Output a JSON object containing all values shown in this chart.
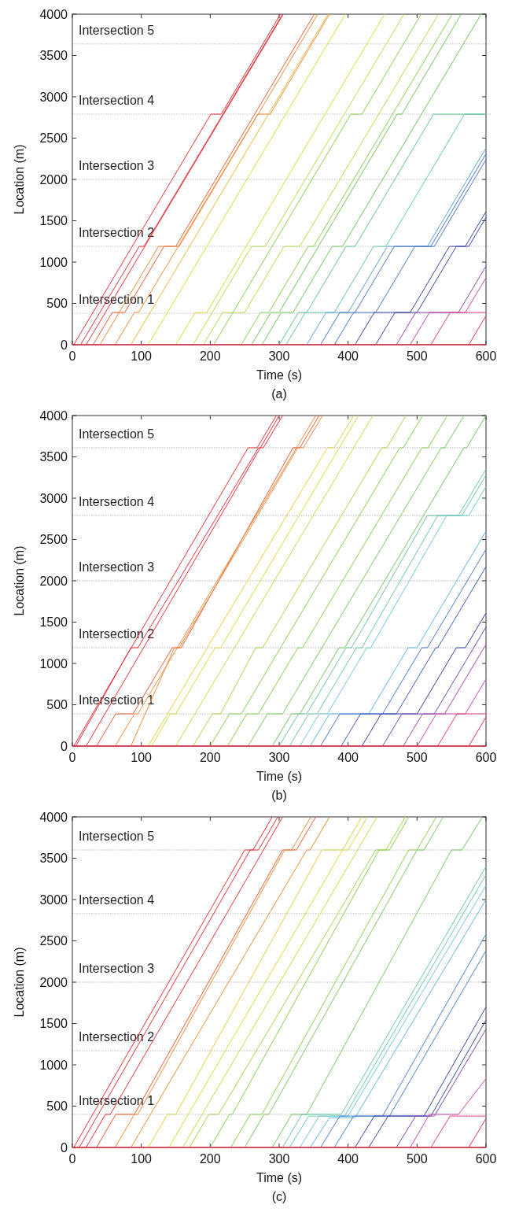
{
  "chart_data": [
    {
      "type": "line",
      "xlabel": "Time (s)",
      "ylabel": "Location (m)",
      "annotations": [
        "(a)"
      ],
      "xlim": [
        0,
        600
      ],
      "ylim": [
        0,
        4000
      ],
      "xticks": [
        0,
        100,
        200,
        300,
        400,
        500,
        600
      ],
      "yticks": [
        0,
        500,
        1000,
        1500,
        2000,
        2500,
        3000,
        3500,
        4000
      ],
      "ref_lines": [
        {
          "axis": "y",
          "value": 380,
          "label": "Intersection 1",
          "color": "#b0b0b0",
          "line_style": "dotted"
        },
        {
          "axis": "y",
          "value": 1190,
          "label": "Intersection 2",
          "color": "#b0b0b0",
          "line_style": "dotted"
        },
        {
          "axis": "y",
          "value": 2000,
          "label": "Intersection 3",
          "color": "#b0b0b0",
          "line_style": "dotted"
        },
        {
          "axis": "y",
          "value": 2790,
          "label": "Intersection 4",
          "color": "#b0b0b0",
          "line_style": "dotted"
        },
        {
          "axis": "y",
          "value": 3640,
          "label": "Intersection 5",
          "color": "#b0b0b0",
          "line_style": "dotted"
        }
      ],
      "series": [
        {
          "color": "#e8304c",
          "x": [
            0,
            600
          ],
          "values": [
            0,
            0
          ]
        },
        {
          "color": "#e83038",
          "x": [
            2,
            201,
            216,
            302
          ],
          "values": [
            0,
            2790,
            2790,
            4000
          ]
        },
        {
          "color": "#e83038",
          "x": [
            12,
            97,
            104,
            305
          ],
          "values": [
            0,
            1190,
            1190,
            4000
          ]
        },
        {
          "color": "#e83038",
          "x": [
            20,
            306
          ],
          "values": [
            0,
            4000
          ]
        },
        {
          "color": "#ec5a30",
          "x": [
            30,
            58,
            76,
            133,
            150,
            351
          ],
          "values": [
            0,
            390,
            390,
            1190,
            1190,
            4000
          ]
        },
        {
          "color": "#ee8a38",
          "x": [
            40,
            125,
            155,
            356
          ],
          "values": [
            0,
            1190,
            1190,
            4000
          ]
        },
        {
          "color": "#ee8a38",
          "x": [
            62,
            90,
            96,
            269,
            287,
            373
          ],
          "values": [
            0,
            390,
            390,
            2790,
            2790,
            4000
          ]
        },
        {
          "color": "#e8b838",
          "x": [
            85,
            371
          ],
          "values": [
            0,
            4000
          ]
        },
        {
          "color": "#dcd83c",
          "x": [
            110,
            396
          ],
          "values": [
            0,
            4000
          ]
        },
        {
          "color": "#dcd83c",
          "x": [
            150,
            178,
            195,
            453
          ],
          "values": [
            0,
            390,
            390,
            4000
          ]
        },
        {
          "color": "#b8dc48",
          "x": [
            175,
            260,
            280,
            481
          ],
          "values": [
            0,
            1190,
            1190,
            4000
          ]
        },
        {
          "color": "#b8dc48",
          "x": [
            190,
            218,
            250,
            307,
            330,
            531
          ],
          "values": [
            0,
            390,
            390,
            1190,
            1190,
            4000
          ]
        },
        {
          "color": "#88d050",
          "x": [
            205,
            404,
            420,
            506
          ],
          "values": [
            0,
            2790,
            2790,
            4000
          ]
        },
        {
          "color": "#88d050",
          "x": [
            245,
            273,
            285,
            342,
            350,
            551
          ],
          "values": [
            0,
            390,
            390,
            1190,
            1190,
            4000
          ]
        },
        {
          "color": "#70c858",
          "x": [
            260,
            288,
            300,
            471,
            478,
            564
          ],
          "values": [
            0,
            390,
            390,
            2790,
            2790,
            4000
          ]
        },
        {
          "color": "#70c858",
          "x": [
            275,
            303,
            320,
            377,
            392,
            593
          ],
          "values": [
            0,
            390,
            390,
            1190,
            1190,
            4000
          ]
        },
        {
          "color": "#60c890",
          "x": [
            300,
            328,
            340,
            397,
            410,
            524,
            600
          ],
          "values": [
            0,
            390,
            390,
            1190,
            1190,
            2790,
            2790
          ]
        },
        {
          "color": "#60c8b0",
          "x": [
            310,
            338,
            380,
            437,
            455,
            569,
            600
          ],
          "values": [
            0,
            390,
            390,
            1190,
            1190,
            2790,
            2790
          ]
        },
        {
          "color": "#5aa0d8",
          "x": [
            340,
            368,
            400,
            457,
            515,
            600
          ],
          "values": [
            0,
            390,
            390,
            1190,
            1190,
            2380
          ]
        },
        {
          "color": "#4878c8",
          "x": [
            360,
            388,
            410,
            467,
            520,
            600
          ],
          "values": [
            0,
            390,
            390,
            1190,
            1190,
            2310
          ]
        },
        {
          "color": "#4878c8",
          "x": [
            380,
            408,
            440,
            497,
            525,
            600
          ],
          "values": [
            0,
            390,
            390,
            1190,
            1190,
            2240
          ]
        },
        {
          "color": "#3848a8",
          "x": [
            410,
            438,
            490,
            547,
            570,
            600
          ],
          "values": [
            0,
            390,
            390,
            1190,
            1190,
            1610
          ]
        },
        {
          "color": "#3848a8",
          "x": [
            440,
            468,
            500,
            557,
            575,
            600
          ],
          "values": [
            0,
            390,
            390,
            1190,
            1190,
            1540
          ]
        },
        {
          "color": "#9048b0",
          "x": [
            470,
            498,
            560,
            600
          ],
          "values": [
            0,
            390,
            390,
            950
          ]
        },
        {
          "color": "#c848a8",
          "x": [
            490,
            518,
            570,
            600
          ],
          "values": [
            0,
            390,
            390,
            810
          ]
        },
        {
          "color": "#e04080",
          "x": [
            520,
            548,
            600
          ],
          "values": [
            0,
            390,
            390
          ]
        },
        {
          "color": "#e83048",
          "x": [
            575,
            600
          ],
          "values": [
            0,
            350
          ]
        }
      ]
    },
    {
      "type": "line",
      "xlabel": "Time (s)",
      "ylabel": "Location (m)",
      "annotations": [
        "(b)"
      ],
      "xlim": [
        0,
        600
      ],
      "ylim": [
        0,
        4000
      ],
      "xticks": [
        0,
        100,
        200,
        300,
        400,
        500,
        600
      ],
      "yticks": [
        0,
        500,
        1000,
        1500,
        2000,
        2500,
        3000,
        3500,
        4000
      ],
      "ref_lines": [
        {
          "axis": "y",
          "value": 390,
          "label": "Intersection 1",
          "color": "#a0a0a0",
          "line_style": "dotted"
        },
        {
          "axis": "y",
          "value": 1190,
          "label": "Intersection 2",
          "color": "#a0a0a0",
          "line_style": "dotted"
        },
        {
          "axis": "y",
          "value": 2000,
          "label": "Intersection 3",
          "color": "#a0a0a0",
          "line_style": "dotted"
        },
        {
          "axis": "y",
          "value": 2790,
          "label": "Intersection 4",
          "color": "#a0a0a0",
          "line_style": "dotted"
        },
        {
          "axis": "y",
          "value": 3610,
          "label": "Intersection 5",
          "color": "#a0a0a0",
          "line_style": "dotted"
        }
      ],
      "series": [
        {
          "color": "#e8304c",
          "x": [
            0,
            600
          ],
          "values": [
            0,
            0
          ]
        },
        {
          "color": "#e83038",
          "x": [
            2,
            255,
            268,
            296
          ],
          "values": [
            0,
            3610,
            3610,
            4000
          ]
        },
        {
          "color": "#e83038",
          "x": [
            5,
            85,
            95,
            270,
            277,
            305
          ],
          "values": [
            0,
            1190,
            1190,
            3610,
            3610,
            4000
          ]
        },
        {
          "color": "#e83038",
          "x": [
            20,
            300
          ],
          "values": [
            0,
            4000
          ]
        },
        {
          "color": "#ec5a30",
          "x": [
            35,
            63,
            88,
            145,
            158,
            320,
            330,
            358
          ],
          "values": [
            0,
            390,
            390,
            1190,
            1190,
            3610,
            3610,
            4000
          ]
        },
        {
          "color": "#ee8a38",
          "x": [
            62,
            90,
            95,
            353
          ],
          "values": [
            0,
            390,
            390,
            4000
          ]
        },
        {
          "color": "#ee8a38",
          "x": [
            85,
            148,
            155,
            327,
            335,
            363
          ],
          "values": [
            0,
            1190,
            1190,
            3610,
            3610,
            4000
          ]
        },
        {
          "color": "#e0d040",
          "x": [
            110,
            370,
            380,
            408
          ],
          "values": [
            0,
            3610,
            3610,
            4000
          ]
        },
        {
          "color": "#dcd83c",
          "x": [
            115,
            142,
            150,
            207,
            215,
            415
          ],
          "values": [
            0,
            390,
            390,
            1190,
            1190,
            4000
          ]
        },
        {
          "color": "#c0dc48",
          "x": [
            150,
            436
          ],
          "values": [
            0,
            4000
          ]
        },
        {
          "color": "#a8d848",
          "x": [
            175,
            203,
            215,
            266,
            276,
            449,
            456,
            484
          ],
          "values": [
            0,
            390,
            390,
            1190,
            1190,
            3610,
            3610,
            4000
          ]
        },
        {
          "color": "#88d050",
          "x": [
            200,
            228,
            245,
            302,
            475,
            480,
            508
          ],
          "values": [
            0,
            390,
            390,
            1190,
            3610,
            3610,
            4000
          ]
        },
        {
          "color": "#88d050",
          "x": [
            225,
            253,
            270,
            327,
            334,
            507,
            516,
            544
          ],
          "values": [
            0,
            390,
            390,
            1190,
            1190,
            3610,
            3610,
            4000
          ]
        },
        {
          "color": "#78cc58",
          "x": [
            255,
            283,
            305,
            362,
            535,
            540,
            568
          ],
          "values": [
            0,
            390,
            390,
            1190,
            3610,
            3610,
            4000
          ]
        },
        {
          "color": "#70c860",
          "x": [
            290,
            318,
            330,
            387,
            395,
            568,
            572,
            600
          ],
          "values": [
            0,
            390,
            390,
            1190,
            1190,
            3610,
            3610,
            4000
          ]
        },
        {
          "color": "#68c8a0",
          "x": [
            300,
            328,
            340,
            397,
            405,
            515,
            560,
            600
          ],
          "values": [
            0,
            390,
            390,
            1190,
            1190,
            2790,
            2790,
            3350
          ]
        },
        {
          "color": "#68c8a0",
          "x": [
            315,
            343,
            355,
            412,
            420,
            530,
            565,
            600
          ],
          "values": [
            0,
            390,
            390,
            1190,
            1190,
            2790,
            2790,
            3280
          ]
        },
        {
          "color": "#70c8d8",
          "x": [
            330,
            358,
            370,
            427,
            433,
            543,
            575,
            600
          ],
          "values": [
            0,
            390,
            390,
            1190,
            1190,
            2790,
            2790,
            3140
          ]
        },
        {
          "color": "#60b8e0",
          "x": [
            345,
            373,
            430,
            487,
            500,
            600
          ],
          "values": [
            0,
            390,
            390,
            1190,
            1190,
            2600
          ]
        },
        {
          "color": "#4a78d0",
          "x": [
            360,
            388,
            450,
            507,
            515,
            600
          ],
          "values": [
            0,
            390,
            390,
            1190,
            1190,
            2380
          ]
        },
        {
          "color": "#3e5cc0",
          "x": [
            390,
            418,
            470,
            527,
            530,
            600
          ],
          "values": [
            0,
            390,
            390,
            1190,
            1190,
            2170
          ]
        },
        {
          "color": "#3840a8",
          "x": [
            420,
            448,
            500,
            557,
            570,
            600
          ],
          "values": [
            0,
            390,
            390,
            1190,
            1190,
            1610
          ]
        },
        {
          "color": "#7848b8",
          "x": [
            450,
            478,
            525,
            600
          ],
          "values": [
            0,
            390,
            390,
            1440
          ]
        },
        {
          "color": "#a048b0",
          "x": [
            480,
            508,
            540,
            600
          ],
          "values": [
            0,
            390,
            390,
            1230
          ]
        },
        {
          "color": "#d048a8",
          "x": [
            500,
            528,
            570,
            600
          ],
          "values": [
            0,
            390,
            390,
            810
          ]
        },
        {
          "color": "#e84088",
          "x": [
            530,
            558,
            600
          ],
          "values": [
            0,
            390,
            390
          ]
        },
        {
          "color": "#e83048",
          "x": [
            575,
            600
          ],
          "values": [
            0,
            350
          ]
        }
      ]
    },
    {
      "type": "line",
      "xlabel": "Time (s)",
      "ylabel": "Location (m)",
      "annotations": [
        "(c)"
      ],
      "xlim": [
        0,
        600
      ],
      "ylim": [
        0,
        4000
      ],
      "xticks": [
        0,
        100,
        200,
        300,
        400,
        500,
        600
      ],
      "yticks": [
        0,
        500,
        1000,
        1500,
        2000,
        2500,
        3000,
        3500,
        4000
      ],
      "ref_lines": [
        {
          "axis": "y",
          "value": 400,
          "label": "Intersection 1",
          "color": "#a8a8a8",
          "line_style": "dotted"
        },
        {
          "axis": "y",
          "value": 1170,
          "label": "Intersection 2",
          "color": "#a8a8a8",
          "line_style": "dotted"
        },
        {
          "axis": "y",
          "value": 2000,
          "label": "Intersection 3",
          "color": "#a8a8a8",
          "line_style": "dotted"
        },
        {
          "axis": "y",
          "value": 2830,
          "label": "Intersection 4",
          "color": "#a8a8a8",
          "line_style": "dotted"
        },
        {
          "axis": "y",
          "value": 3600,
          "label": "Intersection 5",
          "color": "#a8a8a8",
          "line_style": "dotted"
        }
      ],
      "series": [
        {
          "color": "#e8304c",
          "x": [
            0,
            600
          ],
          "values": [
            0,
            0
          ]
        },
        {
          "color": "#e83038",
          "x": [
            2,
            250,
            262,
            290
          ],
          "values": [
            0,
            3600,
            3600,
            4000
          ]
        },
        {
          "color": "#e83038",
          "x": [
            10,
            258,
            270,
            298
          ],
          "values": [
            0,
            3600,
            3600,
            4000
          ]
        },
        {
          "color": "#e83038",
          "x": [
            20,
            48,
            55,
            305
          ],
          "values": [
            0,
            400,
            400,
            4000
          ]
        },
        {
          "color": "#ec5a30",
          "x": [
            35,
            63,
            90,
            305,
            325,
            353
          ],
          "values": [
            0,
            400,
            400,
            3600,
            3600,
            4000
          ]
        },
        {
          "color": "#ee8a38",
          "x": [
            62,
            90,
            95,
            308,
            318,
            346
          ],
          "values": [
            0,
            400,
            400,
            3600,
            3600,
            4000
          ]
        },
        {
          "color": "#ee8a38",
          "x": [
            85,
            340,
            345,
            373
          ],
          "values": [
            0,
            3600,
            3600,
            4000
          ]
        },
        {
          "color": "#e0d040",
          "x": [
            110,
            138,
            150,
            362,
            392,
            420
          ],
          "values": [
            0,
            400,
            400,
            3600,
            3600,
            4000
          ]
        },
        {
          "color": "#dcd83c",
          "x": [
            140,
            392,
            400,
            428
          ],
          "values": [
            0,
            3600,
            3600,
            4000
          ]
        },
        {
          "color": "#c0dc48",
          "x": [
            160,
            442
          ],
          "values": [
            0,
            4000
          ]
        },
        {
          "color": "#a0d848",
          "x": [
            170,
            198,
            212,
            440,
            455,
            483
          ],
          "values": [
            0,
            400,
            400,
            3600,
            3600,
            4000
          ]
        },
        {
          "color": "#88d050",
          "x": [
            200,
            228,
            232,
            445,
            460,
            488
          ],
          "values": [
            0,
            400,
            400,
            3600,
            3600,
            4000
          ]
        },
        {
          "color": "#88d050",
          "x": [
            230,
            258,
            275,
            488,
            500,
            528
          ],
          "values": [
            0,
            400,
            400,
            3600,
            3600,
            4000
          ]
        },
        {
          "color": "#78c860",
          "x": [
            250,
            278,
            285,
            500,
            510,
            538
          ],
          "values": [
            0,
            400,
            400,
            3600,
            3600,
            4000
          ]
        },
        {
          "color": "#78c860",
          "x": [
            290,
            318,
            340,
            550,
            565,
            595
          ],
          "values": [
            0,
            400,
            400,
            3600,
            3600,
            4000
          ]
        },
        {
          "color": "#68c8a0",
          "x": [
            305,
            333,
            390,
            600
          ],
          "values": [
            0,
            400,
            400,
            3400
          ]
        },
        {
          "color": "#68c8b8",
          "x": [
            315,
            343,
            395,
            600
          ],
          "values": [
            0,
            380,
            380,
            3300
          ]
        },
        {
          "color": "#70c8d8",
          "x": [
            330,
            358,
            400,
            600
          ],
          "values": [
            0,
            380,
            380,
            3170
          ]
        },
        {
          "color": "#60b8e0",
          "x": [
            345,
            373,
            410,
            600
          ],
          "values": [
            0,
            360,
            360,
            3000
          ]
        },
        {
          "color": "#4a80d0",
          "x": [
            360,
            388,
            450,
            600
          ],
          "values": [
            0,
            380,
            380,
            2580
          ]
        },
        {
          "color": "#4a80d0",
          "x": [
            380,
            408,
            460,
            600
          ],
          "values": [
            0,
            380,
            380,
            2380
          ]
        },
        {
          "color": "#3848a8",
          "x": [
            410,
            438,
            510,
            600
          ],
          "values": [
            0,
            380,
            380,
            1700
          ]
        },
        {
          "color": "#3848a8",
          "x": [
            430,
            458,
            520,
            600
          ],
          "values": [
            0,
            380,
            380,
            1540
          ]
        },
        {
          "color": "#8048b0",
          "x": [
            470,
            498,
            525,
            600
          ],
          "values": [
            0,
            380,
            380,
            1430
          ]
        },
        {
          "color": "#c848a8",
          "x": [
            490,
            518,
            560,
            600
          ],
          "values": [
            0,
            400,
            400,
            830
          ]
        },
        {
          "color": "#e84088",
          "x": [
            520,
            548,
            600
          ],
          "values": [
            0,
            380,
            380
          ]
        },
        {
          "color": "#e83048",
          "x": [
            575,
            600
          ],
          "values": [
            0,
            350
          ]
        }
      ]
    }
  ]
}
